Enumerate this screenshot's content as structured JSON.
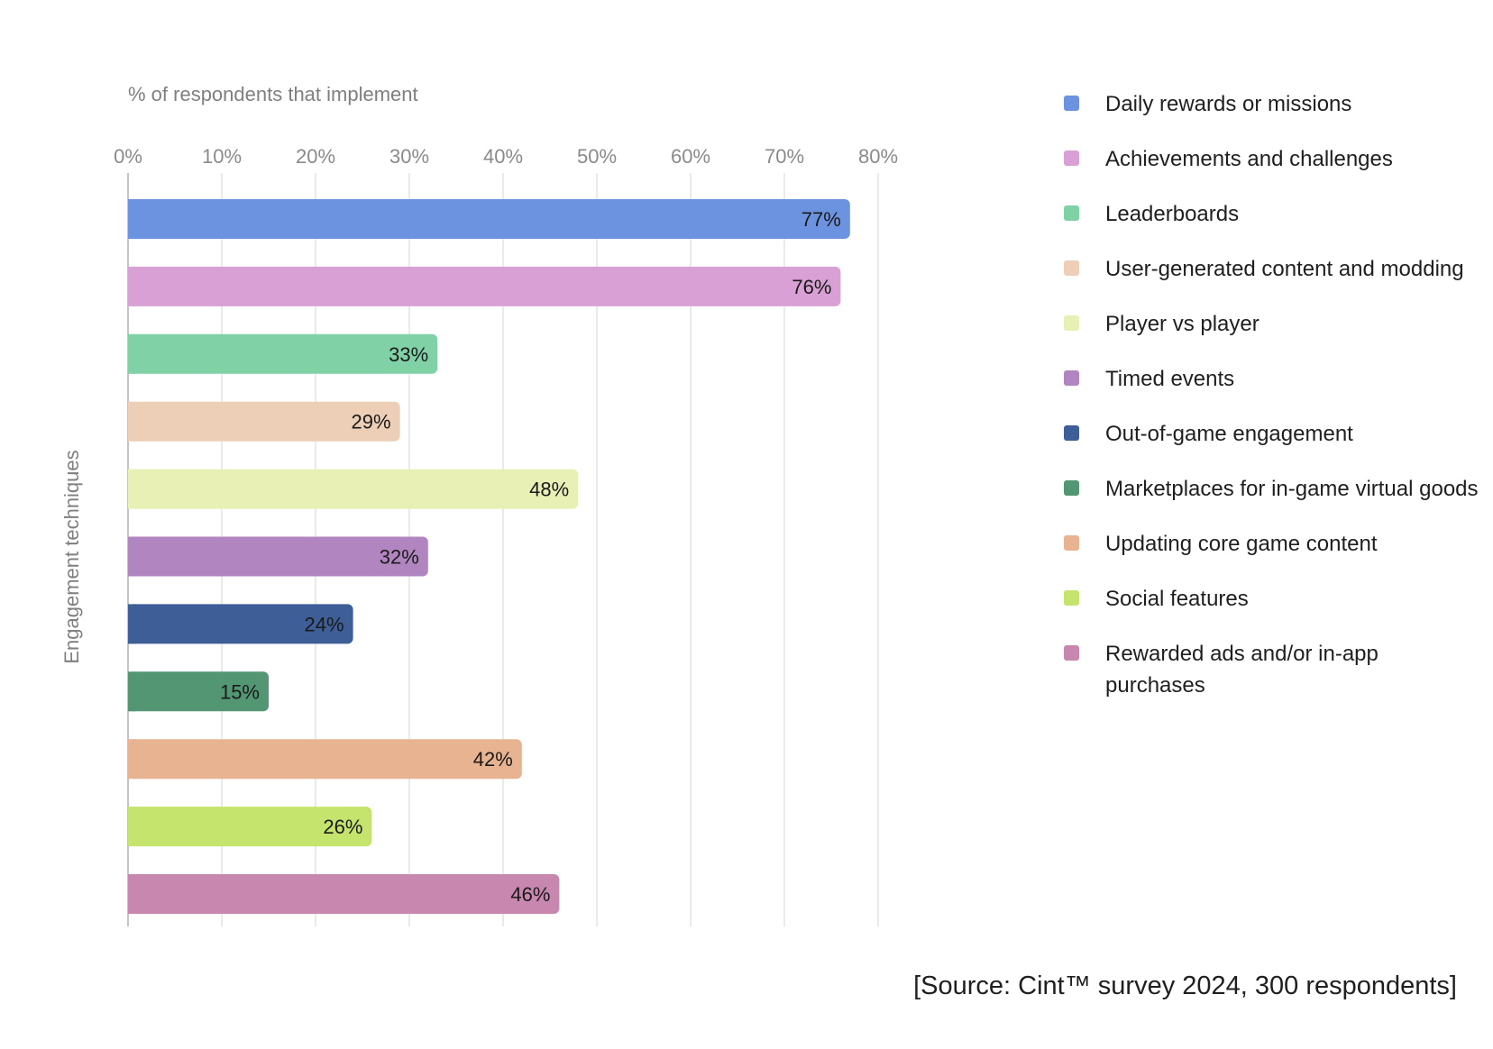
{
  "chart_data": {
    "type": "bar",
    "orientation": "horizontal",
    "xlabel": "% of respondents that implement",
    "ylabel": "Engagement techniques",
    "xlim": [
      0,
      80
    ],
    "xticks": [
      "0%",
      "10%",
      "20%",
      "30%",
      "40%",
      "50%",
      "60%",
      "70%",
      "80%"
    ],
    "grid": true,
    "legend_position": "right",
    "categories": [
      "Daily rewards or missions",
      "Achievements and challenges",
      "Leaderboards",
      "User-generated content and modding",
      "Player vs player",
      "Timed events",
      "Out-of-game engagement",
      "Marketplaces for in-game virtual goods",
      "Updating core game content",
      "Social features",
      "Rewarded ads and/or in-app purchases"
    ],
    "values": [
      77,
      76,
      33,
      29,
      48,
      32,
      24,
      15,
      42,
      26,
      46
    ],
    "value_labels": [
      "77%",
      "76%",
      "33%",
      "29%",
      "48%",
      "32%",
      "24%",
      "15%",
      "42%",
      "26%",
      "46%"
    ],
    "colors": [
      "#6b93df",
      "#d8a0d4",
      "#80d1a6",
      "#eccfb6",
      "#e8f0b5",
      "#b085c0",
      "#3d5e96",
      "#529673",
      "#e8b390",
      "#c5e46e",
      "#c887ae"
    ]
  },
  "source": "[Source: Cint™ survey 2024, 300 respondents]"
}
